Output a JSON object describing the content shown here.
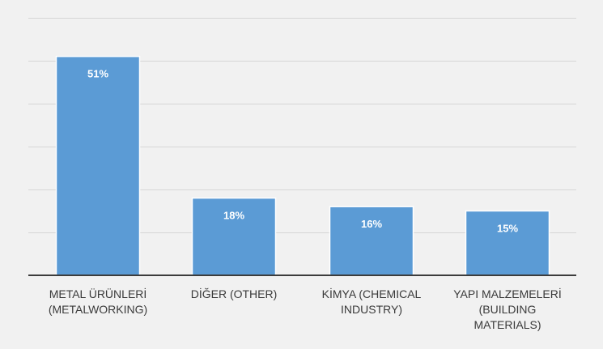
{
  "chart_data": {
    "type": "bar",
    "categories": [
      [
        "METAL ÜRÜNLERİ",
        "(METALWORKING)"
      ],
      [
        "DİĞER (OTHER)"
      ],
      [
        "KİMYA (CHEMICAL",
        "INDUSTRY)"
      ],
      [
        "YAPI MALZEMELERİ",
        "(BUILDING",
        "MATERIALS)"
      ]
    ],
    "values": [
      51,
      18,
      16,
      15
    ],
    "data_labels": [
      "51%",
      "18%",
      "16%",
      "15%"
    ],
    "ylim": [
      0,
      60
    ],
    "yticks": [
      0,
      10,
      20,
      30,
      40,
      50,
      60
    ],
    "grid": true,
    "legend": "none",
    "title": "",
    "xlabel": "",
    "ylabel": "",
    "colors": {
      "bar": "#5b9bd5",
      "label": "#ffffff",
      "axis": "#3c3c3c",
      "grid": "#d6d6d6"
    }
  }
}
